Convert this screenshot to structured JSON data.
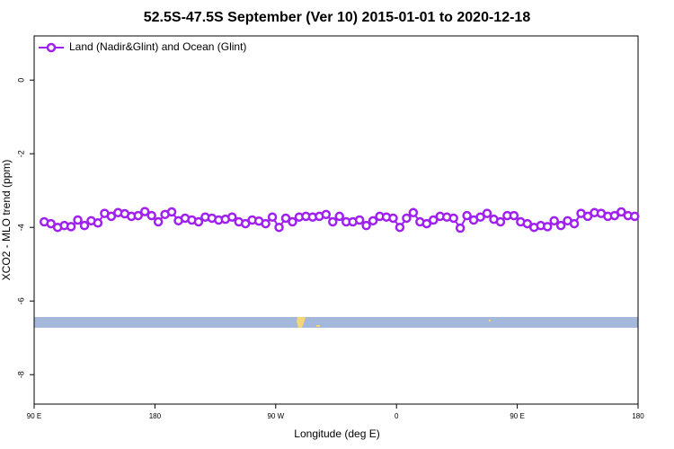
{
  "chart_data": {
    "type": "line",
    "title": "52.5S-47.5S September (Ver 10)   2015-01-01 to 2020-12-18",
    "x_label": "Longitude (deg E)",
    "y_label": "XCO2 - MLO trend (ppm)",
    "xlim": [
      90,
      540
    ],
    "ylim": [
      -8.8,
      1.2
    ],
    "xticks": [
      {
        "value": 90,
        "label": "90 E"
      },
      180,
      {
        "value": 270,
        "label": "90 W"
      },
      {
        "value": 360,
        "label": "0"
      },
      {
        "value": 450,
        "label": "90 E"
      },
      {
        "value": 540,
        "label": "180"
      }
    ],
    "yticks": [
      0,
      -2,
      -4,
      -6,
      -8
    ],
    "legend": "top-left",
    "series": [
      {
        "name": "Land (Nadir&Glint) and Ocean (Glint)",
        "color": "#a020f0",
        "x": [
          97.5,
          102.5,
          107.5,
          112.5,
          117.5,
          122.5,
          127.5,
          132.5,
          137.5,
          142.5,
          147.5,
          152.5,
          157.5,
          162.5,
          167.5,
          172.5,
          177.5,
          182.5,
          187.5,
          192.5,
          197.5,
          202.5,
          207.5,
          212.5,
          217.5,
          222.5,
          227.5,
          232.5,
          237.5,
          242.5,
          247.5,
          252.5,
          257.5,
          262.5,
          267.5,
          272.5,
          277.5,
          282.5,
          287.5,
          292.5,
          297.5,
          302.5,
          307.5,
          312.5,
          317.5,
          322.5,
          327.5,
          332.5,
          337.5,
          342.5,
          347.5,
          352.5,
          357.5,
          362.5,
          367.5,
          372.5,
          377.5,
          382.5,
          387.5,
          392.5,
          397.5,
          402.5,
          407.5,
          412.5,
          417.5,
          422.5,
          427.5,
          432.5,
          437.5,
          442.5,
          447.5,
          452.5,
          457.5,
          462.5,
          467.5,
          472.5,
          477.5,
          482.5,
          487.5,
          492.5,
          497.5,
          502.5,
          507.5,
          512.5,
          517.5,
          522.5,
          527.5,
          532.5,
          537.5
        ],
        "values": [
          -3.85,
          -3.9,
          -4.0,
          -3.95,
          -3.98,
          -3.8,
          -3.95,
          -3.82,
          -3.88,
          -3.62,
          -3.7,
          -3.6,
          -3.63,
          -3.7,
          -3.68,
          -3.57,
          -3.68,
          -3.85,
          -3.65,
          -3.58,
          -3.82,
          -3.75,
          -3.8,
          -3.85,
          -3.72,
          -3.75,
          -3.8,
          -3.78,
          -3.72,
          -3.85,
          -3.9,
          -3.8,
          -3.83,
          -3.9,
          -3.72,
          -4.0,
          -3.75,
          -3.85,
          -3.72,
          -3.7,
          -3.72,
          -3.7,
          -3.65,
          -3.85,
          -3.7,
          -3.85,
          -3.85,
          -3.8,
          -3.95,
          -3.82,
          -3.7,
          -3.72,
          -3.75,
          -4.0,
          -3.75,
          -3.6,
          -3.85,
          -3.9,
          -3.8,
          -3.7,
          -3.72,
          -3.75,
          -4.02,
          -3.68,
          -3.8,
          -3.72,
          -3.62,
          -3.78,
          -3.85,
          -3.68,
          -3.68,
          -3.85,
          -3.9,
          -4.0,
          -3.95,
          -3.98,
          -3.82,
          -3.95,
          -3.82,
          -3.9,
          -3.62,
          -3.7,
          -3.6,
          -3.62,
          -3.7,
          -3.68,
          -3.58,
          -3.68,
          -3.7
        ]
      }
    ]
  }
}
